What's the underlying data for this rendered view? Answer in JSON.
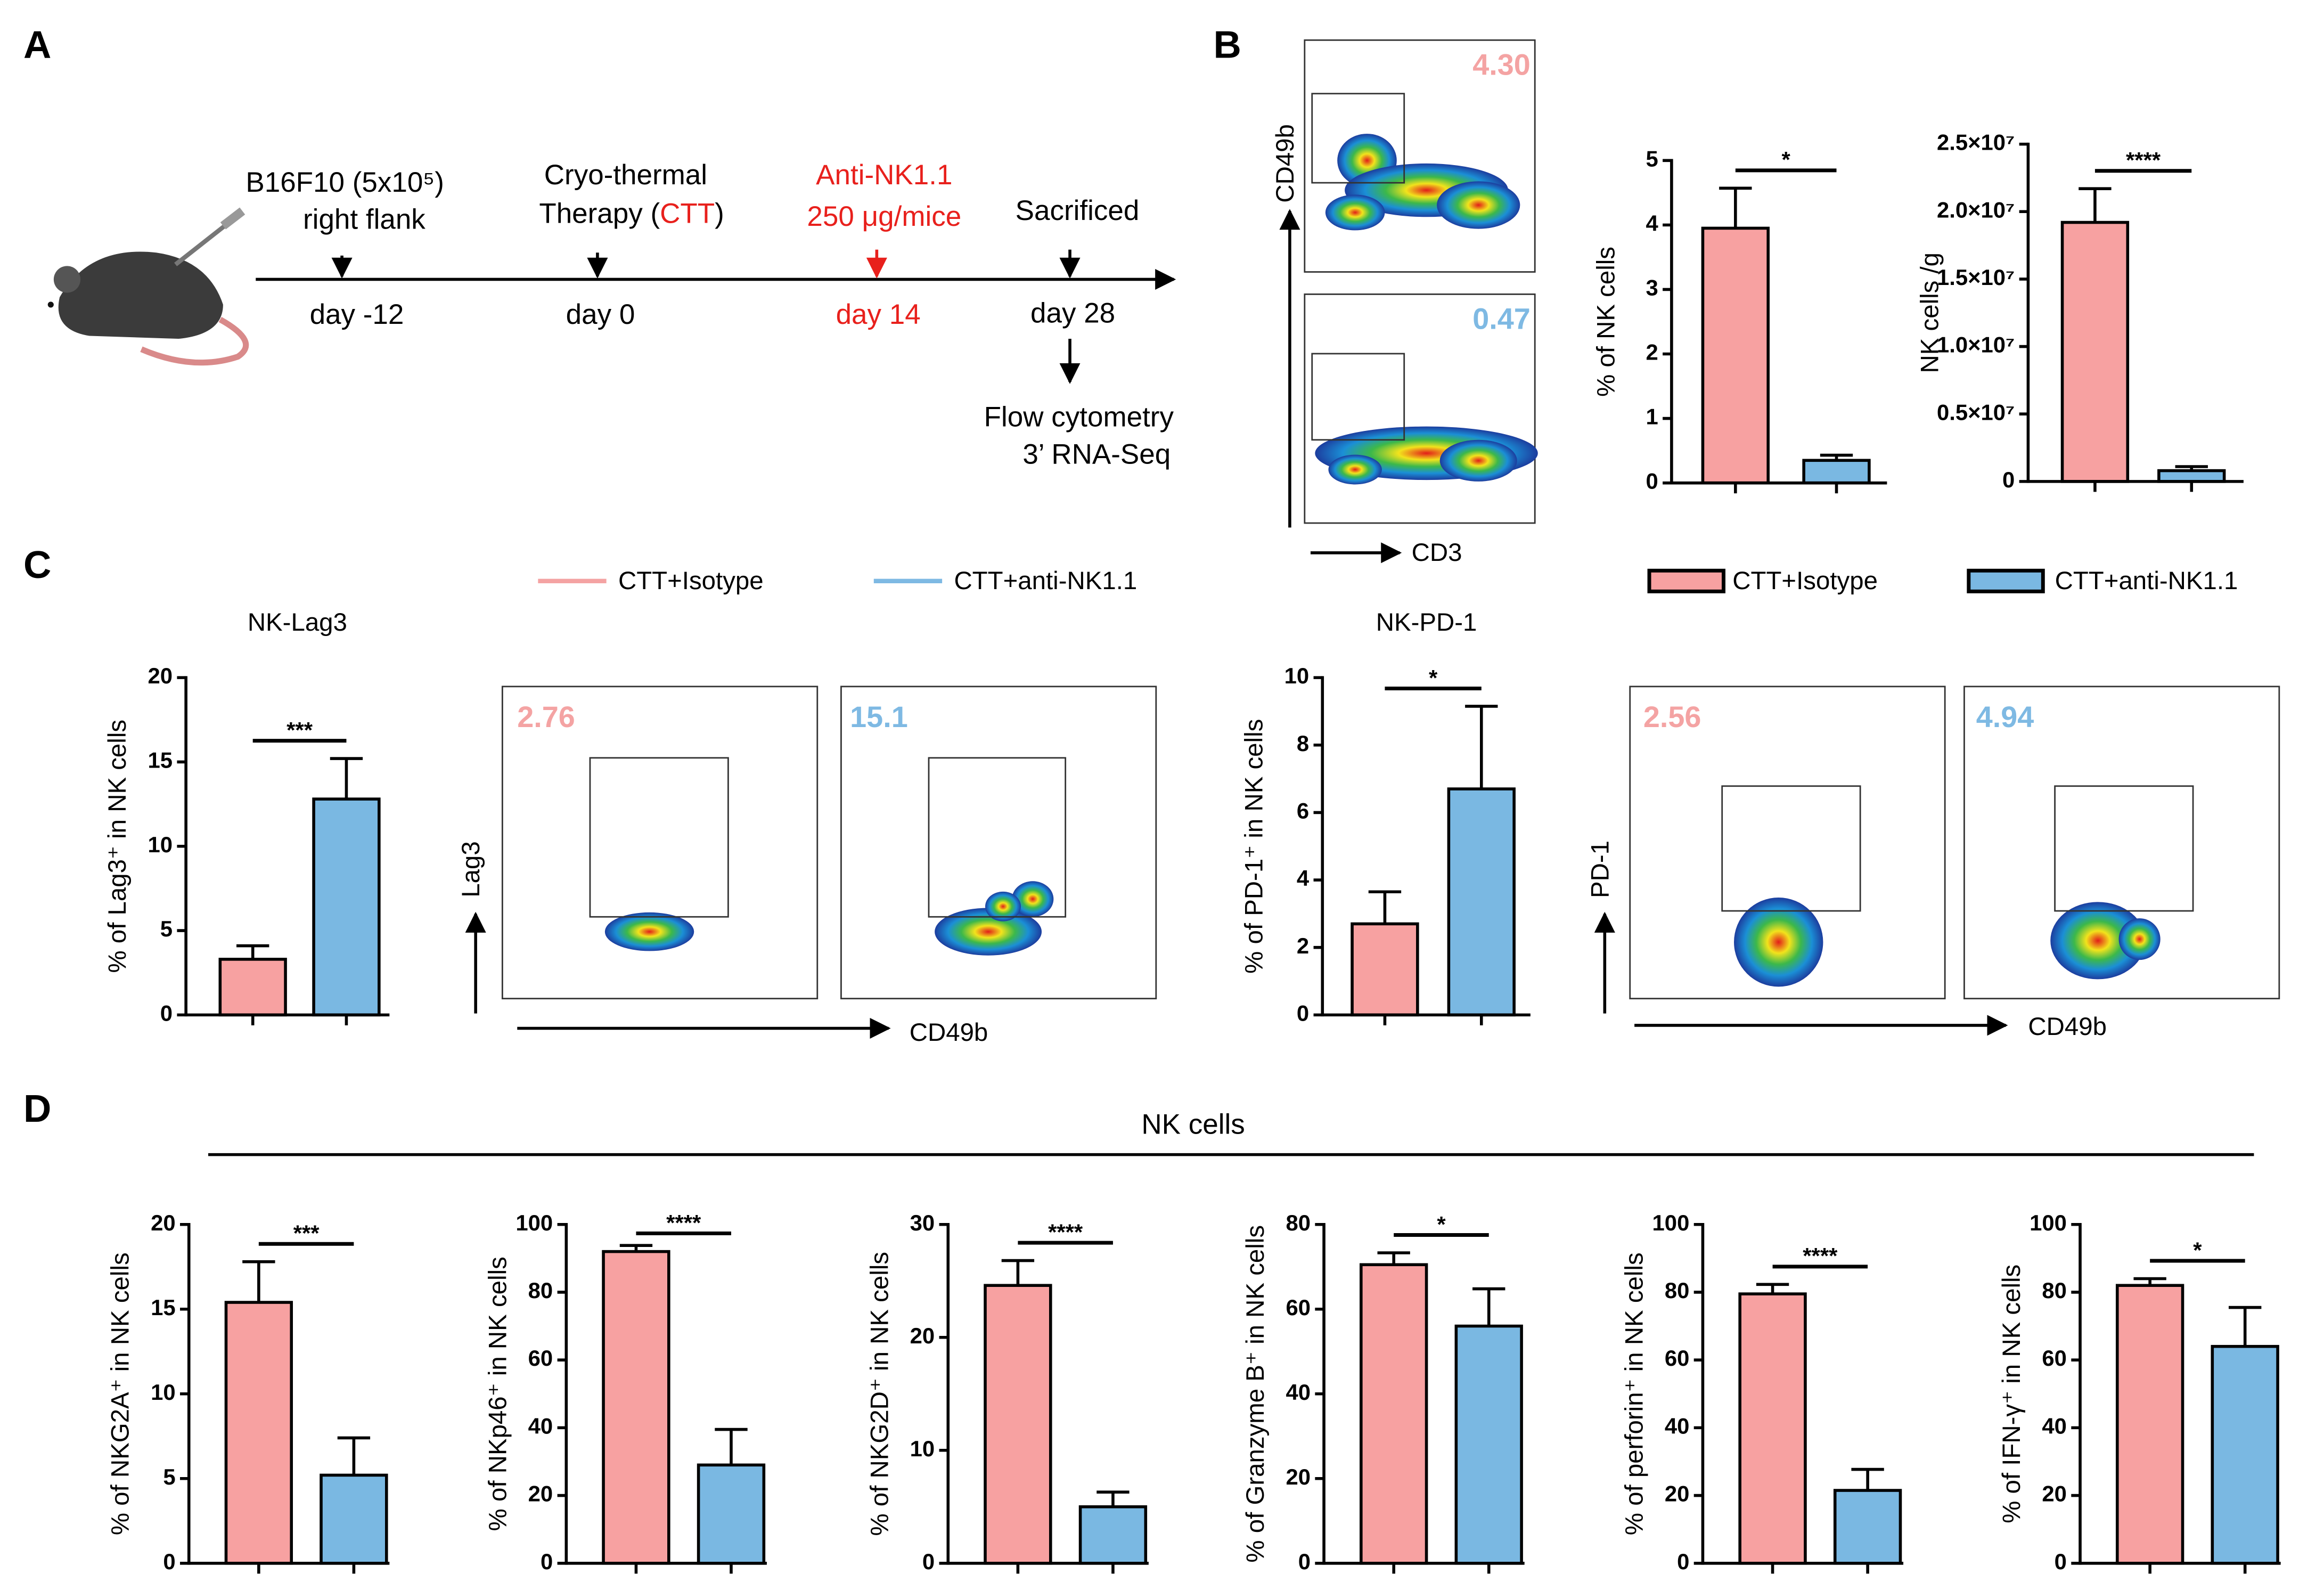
{
  "panel_labels": [
    "A",
    "B",
    "C",
    "D"
  ],
  "timeline": {
    "events": [
      {
        "text": [
          "B16F10 (5x10⁵)",
          "right flank"
        ],
        "day": "day -12"
      },
      {
        "text": [
          "Cryo-thermal",
          "Therapy (",
          "CTT",
          ")"
        ],
        "day": "day 0"
      },
      {
        "text": [
          "Anti-NK1.1",
          "250 μg/mice"
        ],
        "day": "day 14"
      },
      {
        "text": [
          "Sacrificed"
        ],
        "day": "day 28"
      }
    ],
    "readout": [
      "Flow cytometry",
      "3’ RNA-Seq"
    ],
    "highlight_color": "#e8201c"
  },
  "flow": {
    "B": {
      "y_axis": "CD49b",
      "x_axis": "CD3",
      "gates": [
        "4.30",
        "0.47"
      ]
    },
    "C_lag3": {
      "y_axis": "Lag3",
      "x_axis": "CD49b",
      "gates": [
        "2.76",
        "15.1"
      ]
    },
    "C_pd1": {
      "y_axis": "PD-1",
      "x_axis": "CD49b",
      "gates": [
        "2.56",
        "4.94"
      ]
    }
  },
  "legend_lines": [
    {
      "name": "CTT+Isotype",
      "color": "#f4a3a3"
    },
    {
      "name": "CTT+anti-NK1.1",
      "color": "#7eb9e3"
    }
  ],
  "legend_boxes": [
    {
      "name": "CTT+Isotype",
      "color": "#f7a1a1"
    },
    {
      "name": "CTT+anti-NK1.1",
      "color": "#7ab8e2"
    }
  ],
  "d_heading": "NK cells",
  "chart_data": [
    {
      "type": "bar",
      "y_label": "% of NK cells",
      "categories": [
        null,
        null
      ],
      "values": [
        3.95,
        0.35
      ],
      "errors": [
        0.62,
        0.08
      ],
      "ylim": [
        0,
        5
      ],
      "yticks": [
        0,
        1,
        2,
        3,
        4,
        5
      ],
      "significance": "*"
    },
    {
      "type": "bar",
      "y_label": "NK cells /g",
      "categories": [
        null,
        null
      ],
      "values": [
        19200000,
        800000
      ],
      "errors": [
        2500000,
        300000
      ],
      "ylim": [
        0,
        25000000
      ],
      "yticks": [
        0,
        {
          "value": 5000000,
          "label": "0.5×10⁷"
        },
        {
          "value": 10000000,
          "label": "1.0×10⁷"
        },
        {
          "value": 15000000,
          "label": "1.5×10⁷"
        },
        {
          "value": 20000000,
          "label": "2.0×10⁷"
        },
        {
          "value": 25000000,
          "label": "2.5×10⁷"
        }
      ],
      "significance": "****"
    },
    {
      "type": "bar",
      "title": "NK-Lag3",
      "y_label": "% of Lag3⁺ in NK cells",
      "categories": [
        null,
        null
      ],
      "values": [
        3.3,
        12.8
      ],
      "errors": [
        0.8,
        2.4
      ],
      "ylim": [
        0,
        20
      ],
      "yticks": [
        0,
        5,
        10,
        15,
        20
      ],
      "significance": "***"
    },
    {
      "type": "bar",
      "title": "NK-PD-1",
      "y_label": "% of PD-1⁺ in NK cells",
      "categories": [
        null,
        null
      ],
      "values": [
        2.7,
        6.7
      ],
      "errors": [
        0.95,
        2.45
      ],
      "ylim": [
        0,
        10
      ],
      "yticks": [
        0,
        2,
        4,
        6,
        8,
        10
      ],
      "significance": "*"
    },
    {
      "type": "bar",
      "y_label": "% of NKG2A⁺ in NK cells",
      "categories": [
        null,
        null
      ],
      "values": [
        15.4,
        5.2
      ],
      "errors": [
        2.4,
        2.2
      ],
      "ylim": [
        0,
        20
      ],
      "yticks": [
        0,
        5,
        10,
        15,
        20
      ],
      "significance": "***"
    },
    {
      "type": "bar",
      "y_label": "% of NKp46⁺ in NK cells",
      "categories": [
        null,
        null
      ],
      "values": [
        92,
        29
      ],
      "errors": [
        1.8,
        10.5
      ],
      "ylim": [
        0,
        100
      ],
      "yticks": [
        0,
        20,
        40,
        60,
        80,
        100
      ],
      "significance": "****"
    },
    {
      "type": "bar",
      "y_label": "% of NKG2D⁺ in NK cells",
      "categories": [
        null,
        null
      ],
      "values": [
        24.6,
        5.0
      ],
      "errors": [
        2.2,
        1.3
      ],
      "ylim": [
        0,
        30
      ],
      "yticks": [
        0,
        10,
        20,
        30
      ],
      "significance": "****"
    },
    {
      "type": "bar",
      "y_label": "% of Granzyme B⁺ in NK cells",
      "categories": [
        null,
        null
      ],
      "values": [
        70.5,
        56
      ],
      "errors": [
        2.8,
        8.8
      ],
      "ylim": [
        0,
        80
      ],
      "yticks": [
        0,
        20,
        40,
        60,
        80
      ],
      "significance": "*"
    },
    {
      "type": "bar",
      "y_label": "% of perforin⁺ in NK cells",
      "categories": [
        null,
        null
      ],
      "values": [
        79.5,
        21.5
      ],
      "errors": [
        2.8,
        6.2
      ],
      "ylim": [
        0,
        100
      ],
      "yticks": [
        0,
        20,
        40,
        60,
        80,
        100
      ],
      "significance": "****"
    },
    {
      "type": "bar",
      "y_label": "% of IFN-γ⁺ in NK cells",
      "categories": [
        null,
        null
      ],
      "values": [
        82,
        64
      ],
      "errors": [
        2,
        11.5
      ],
      "ylim": [
        0,
        100
      ],
      "yticks": [
        0,
        20,
        40,
        60,
        80,
        100
      ],
      "significance": "*"
    }
  ]
}
